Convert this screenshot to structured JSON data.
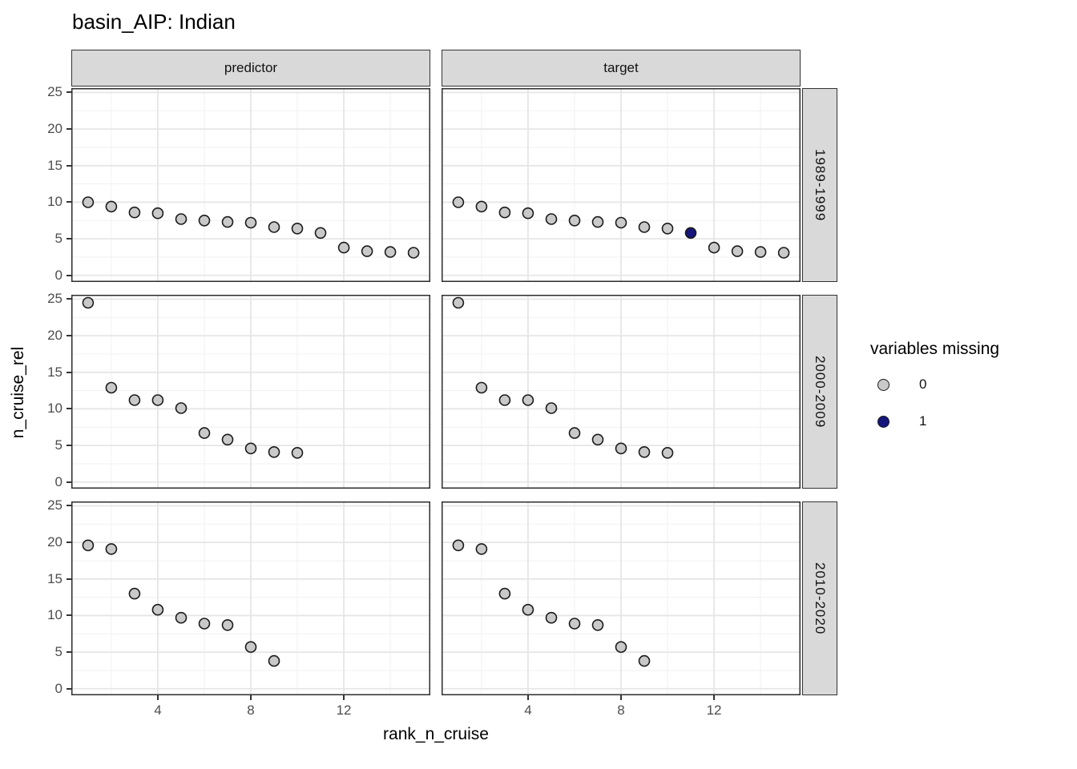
{
  "title": "basin_AIP: Indian",
  "facets": {
    "cols": [
      "predictor",
      "target"
    ],
    "rows": [
      "1989-1999",
      "2000-2009",
      "2010-2020"
    ]
  },
  "axes": {
    "x_label": "rank_n_cruise",
    "y_label": "n_cruise_rel",
    "x_ticks": [
      4,
      8,
      12
    ],
    "y_ticks": [
      0,
      5,
      10,
      15,
      20,
      25
    ]
  },
  "legend": {
    "title": "variables missing",
    "items": [
      {
        "label": "0",
        "color": "#C9C9C9"
      },
      {
        "label": "1",
        "color": "#15157B"
      }
    ]
  },
  "colors": {
    "point_stroke": "#1A1A1A",
    "strip_fill": "#D9D9D9",
    "panel_border": "#2D2D2D",
    "grid_major": "#E6E6E6",
    "grid_minor": "#F1F1F1",
    "missing_0": "#C9C9C9",
    "missing_1": "#15157B"
  },
  "chart_data": {
    "type": "scatter",
    "title": "basin_AIP: Indian",
    "xlabel": "rank_n_cruise",
    "ylabel": "n_cruise_rel",
    "x_ticks": [
      4,
      8,
      12
    ],
    "y_ticks": [
      0,
      5,
      10,
      15,
      20,
      25
    ],
    "x_range": [
      0.28,
      15.72
    ],
    "y_range": [
      -0.9,
      25.6
    ],
    "x_minor_ticks": [
      2,
      6,
      10,
      14
    ],
    "y_minor_ticks": [
      2.5,
      7.5,
      12.5,
      17.5,
      22.5
    ],
    "grid": true,
    "legend_title": "variables missing",
    "legend_levels": [
      "0",
      "1"
    ],
    "legend_position": "right",
    "facet_cols": [
      "predictor",
      "target"
    ],
    "facet_rows": [
      "1989-1999",
      "2000-2009",
      "2010-2020"
    ],
    "panels": [
      {
        "col": "predictor",
        "row": "1989-1999",
        "x": [
          1,
          2,
          3,
          4,
          5,
          6,
          7,
          8,
          9,
          10,
          11,
          12,
          13,
          14,
          15
        ],
        "y": [
          10.0,
          9.4,
          8.6,
          8.5,
          7.7,
          7.5,
          7.3,
          7.2,
          6.6,
          6.4,
          5.8,
          3.8,
          3.3,
          3.2,
          3.1
        ],
        "missing": [
          0,
          0,
          0,
          0,
          0,
          0,
          0,
          0,
          0,
          0,
          0,
          0,
          0,
          0,
          0
        ]
      },
      {
        "col": "target",
        "row": "1989-1999",
        "x": [
          1,
          2,
          3,
          4,
          5,
          6,
          7,
          8,
          9,
          10,
          11,
          12,
          13,
          14,
          15
        ],
        "y": [
          10.0,
          9.4,
          8.6,
          8.5,
          7.7,
          7.5,
          7.3,
          7.2,
          6.6,
          6.4,
          5.8,
          3.8,
          3.3,
          3.2,
          3.1
        ],
        "missing": [
          0,
          0,
          0,
          0,
          0,
          0,
          0,
          0,
          0,
          0,
          1,
          0,
          0,
          0,
          0
        ]
      },
      {
        "col": "predictor",
        "row": "2000-2009",
        "x": [
          1,
          2,
          3,
          4,
          5,
          6,
          7,
          8,
          9,
          10
        ],
        "y": [
          24.5,
          12.9,
          11.2,
          11.2,
          10.1,
          6.7,
          5.8,
          4.6,
          4.1,
          4.0
        ],
        "missing": [
          0,
          0,
          0,
          0,
          0,
          0,
          0,
          0,
          0,
          0
        ]
      },
      {
        "col": "target",
        "row": "2000-2009",
        "x": [
          1,
          2,
          3,
          4,
          5,
          6,
          7,
          8,
          9,
          10
        ],
        "y": [
          24.5,
          12.9,
          11.2,
          11.2,
          10.1,
          6.7,
          5.8,
          4.6,
          4.1,
          4.0
        ],
        "missing": [
          0,
          0,
          0,
          0,
          0,
          0,
          0,
          0,
          0,
          0
        ]
      },
      {
        "col": "predictor",
        "row": "2010-2020",
        "x": [
          1,
          2,
          3,
          4,
          5,
          6,
          7,
          8,
          9
        ],
        "y": [
          19.6,
          19.1,
          13.0,
          10.8,
          9.7,
          8.9,
          8.7,
          5.7,
          3.8
        ],
        "missing": [
          0,
          0,
          0,
          0,
          0,
          0,
          0,
          0,
          0
        ]
      },
      {
        "col": "target",
        "row": "2010-2020",
        "x": [
          1,
          2,
          3,
          4,
          5,
          6,
          7,
          8,
          9
        ],
        "y": [
          19.6,
          19.1,
          13.0,
          10.8,
          9.7,
          8.9,
          8.7,
          5.7,
          3.8
        ],
        "missing": [
          0,
          0,
          0,
          0,
          0,
          0,
          0,
          0,
          0
        ]
      }
    ]
  }
}
